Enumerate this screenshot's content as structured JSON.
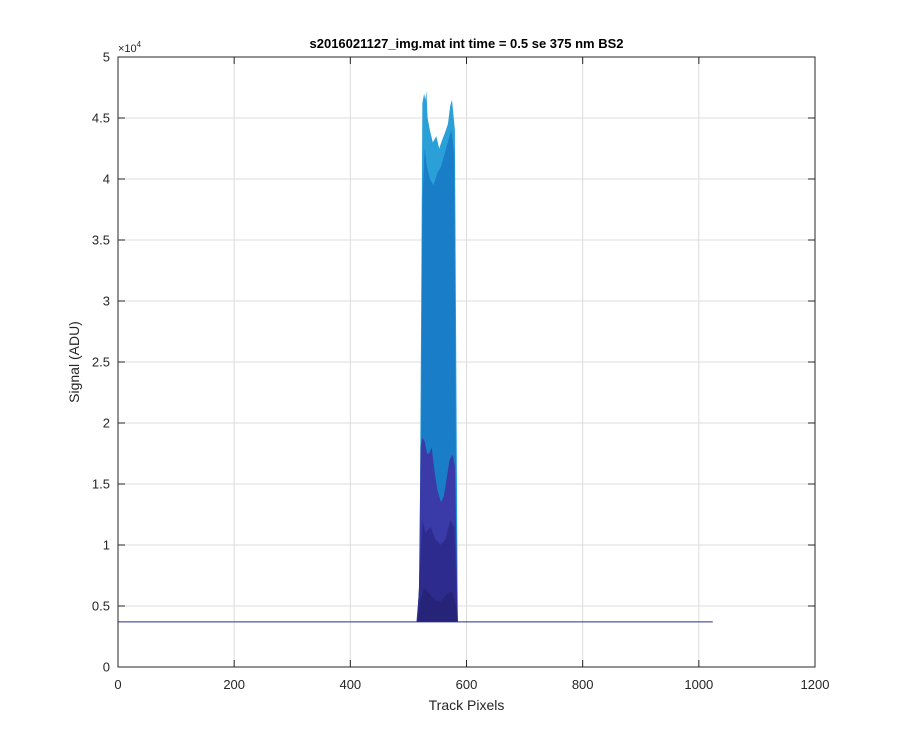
{
  "chart_data": {
    "type": "area",
    "title": "s2016021127_img.mat int time = 0.5 se  375 nm BS2",
    "xlabel": "Track Pixels",
    "ylabel": "Signal (ADU)",
    "xlim": [
      0,
      1200
    ],
    "ylim": [
      0,
      50000
    ],
    "xticks": [
      0,
      200,
      400,
      600,
      800,
      1000,
      1200
    ],
    "xtick_labels": [
      "0",
      "200",
      "400",
      "600",
      "800",
      "1000",
      "1200"
    ],
    "yticks": [
      0,
      5000,
      10000,
      15000,
      20000,
      25000,
      30000,
      35000,
      40000,
      45000,
      50000
    ],
    "ytick_labels": [
      "0",
      "0.5",
      "1",
      "1.5",
      "2",
      "2.5",
      "3",
      "3.5",
      "4",
      "4.5",
      "5"
    ],
    "y_exponent_label": "×10",
    "y_exponent_power": "4",
    "grid": true,
    "baseline": {
      "value": 3700,
      "x_range": [
        0,
        1024
      ]
    },
    "series": [
      {
        "color": "#2a9fd8",
        "points": [
          [
            515,
            3800
          ],
          [
            519,
            7000
          ],
          [
            522,
            30000
          ],
          [
            524,
            46200
          ],
          [
            527,
            47000
          ],
          [
            529,
            46500
          ],
          [
            531,
            47200
          ],
          [
            533,
            45000
          ],
          [
            537,
            44000
          ],
          [
            542,
            43000
          ],
          [
            548,
            43500
          ],
          [
            553,
            42500
          ],
          [
            558,
            43200
          ],
          [
            563,
            43800
          ],
          [
            568,
            44500
          ],
          [
            572,
            46000
          ],
          [
            575,
            46500
          ],
          [
            578,
            45000
          ],
          [
            580,
            44000
          ],
          [
            583,
            20000
          ],
          [
            585,
            3700
          ]
        ]
      },
      {
        "color": "#1a7dc8",
        "points": [
          [
            517,
            3800
          ],
          [
            521,
            12000
          ],
          [
            524,
            38000
          ],
          [
            528,
            42500
          ],
          [
            532,
            41000
          ],
          [
            537,
            40000
          ],
          [
            543,
            39500
          ],
          [
            550,
            40500
          ],
          [
            556,
            41000
          ],
          [
            562,
            42000
          ],
          [
            568,
            43000
          ],
          [
            574,
            44000
          ],
          [
            579,
            42000
          ],
          [
            582,
            15000
          ],
          [
            584,
            3700
          ]
        ]
      },
      {
        "color": "#3a3aa8",
        "points": [
          [
            514,
            3800
          ],
          [
            518,
            6000
          ],
          [
            521,
            18000
          ],
          [
            524,
            18800
          ],
          [
            528,
            18500
          ],
          [
            532,
            17500
          ],
          [
            536,
            17500
          ],
          [
            540,
            18000
          ],
          [
            545,
            16000
          ],
          [
            550,
            14500
          ],
          [
            556,
            13500
          ],
          [
            561,
            14000
          ],
          [
            566,
            15500
          ],
          [
            571,
            17000
          ],
          [
            576,
            17400
          ],
          [
            580,
            16500
          ],
          [
            583,
            9000
          ],
          [
            585,
            3700
          ]
        ]
      },
      {
        "color": "#2e2b8e",
        "points": [
          [
            515,
            3800
          ],
          [
            520,
            8000
          ],
          [
            524,
            12000
          ],
          [
            530,
            11000
          ],
          [
            538,
            11500
          ],
          [
            546,
            10500
          ],
          [
            555,
            10000
          ],
          [
            564,
            10500
          ],
          [
            572,
            12000
          ],
          [
            579,
            11500
          ],
          [
            583,
            6000
          ],
          [
            585,
            3700
          ]
        ]
      },
      {
        "color": "#262478",
        "points": [
          [
            516,
            3800
          ],
          [
            521,
            5500
          ],
          [
            527,
            6500
          ],
          [
            536,
            6000
          ],
          [
            545,
            5500
          ],
          [
            556,
            5400
          ],
          [
            566,
            6000
          ],
          [
            575,
            6200
          ],
          [
            582,
            5000
          ],
          [
            585,
            3700
          ]
        ]
      }
    ]
  }
}
